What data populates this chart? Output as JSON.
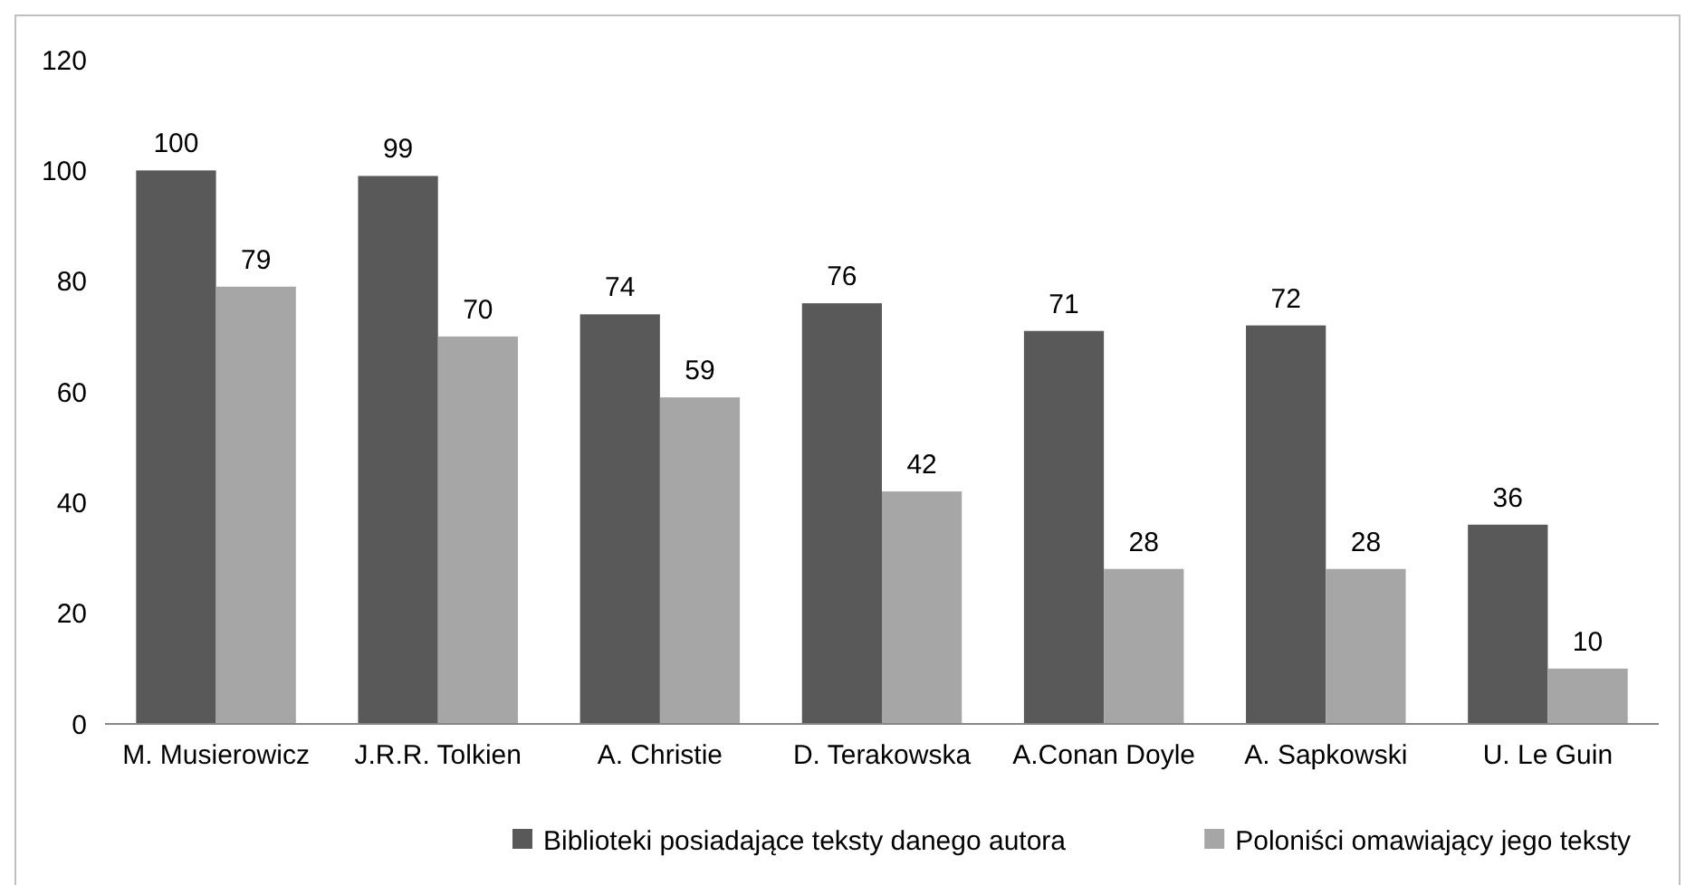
{
  "chart_data": {
    "type": "bar",
    "categories": [
      "M. Musierowicz",
      "J.R.R. Tolkien",
      "A. Christie",
      "D. Terakowska",
      "A.Conan Doyle",
      "A. Sapkowski",
      "U. Le Guin"
    ],
    "series": [
      {
        "name": "Biblioteki posiadające teksty danego autora",
        "color": "#595959",
        "values": [
          100,
          99,
          74,
          76,
          71,
          72,
          36
        ]
      },
      {
        "name": "Poloniści omawiający jego teksty",
        "color": "#a6a6a6",
        "values": [
          79,
          70,
          59,
          42,
          28,
          28,
          10
        ]
      }
    ],
    "ylim": [
      0,
      120
    ],
    "yticks": [
      0,
      20,
      40,
      60,
      80,
      100,
      120
    ],
    "data_labels": true,
    "legend": "bottom",
    "grid": false
  }
}
